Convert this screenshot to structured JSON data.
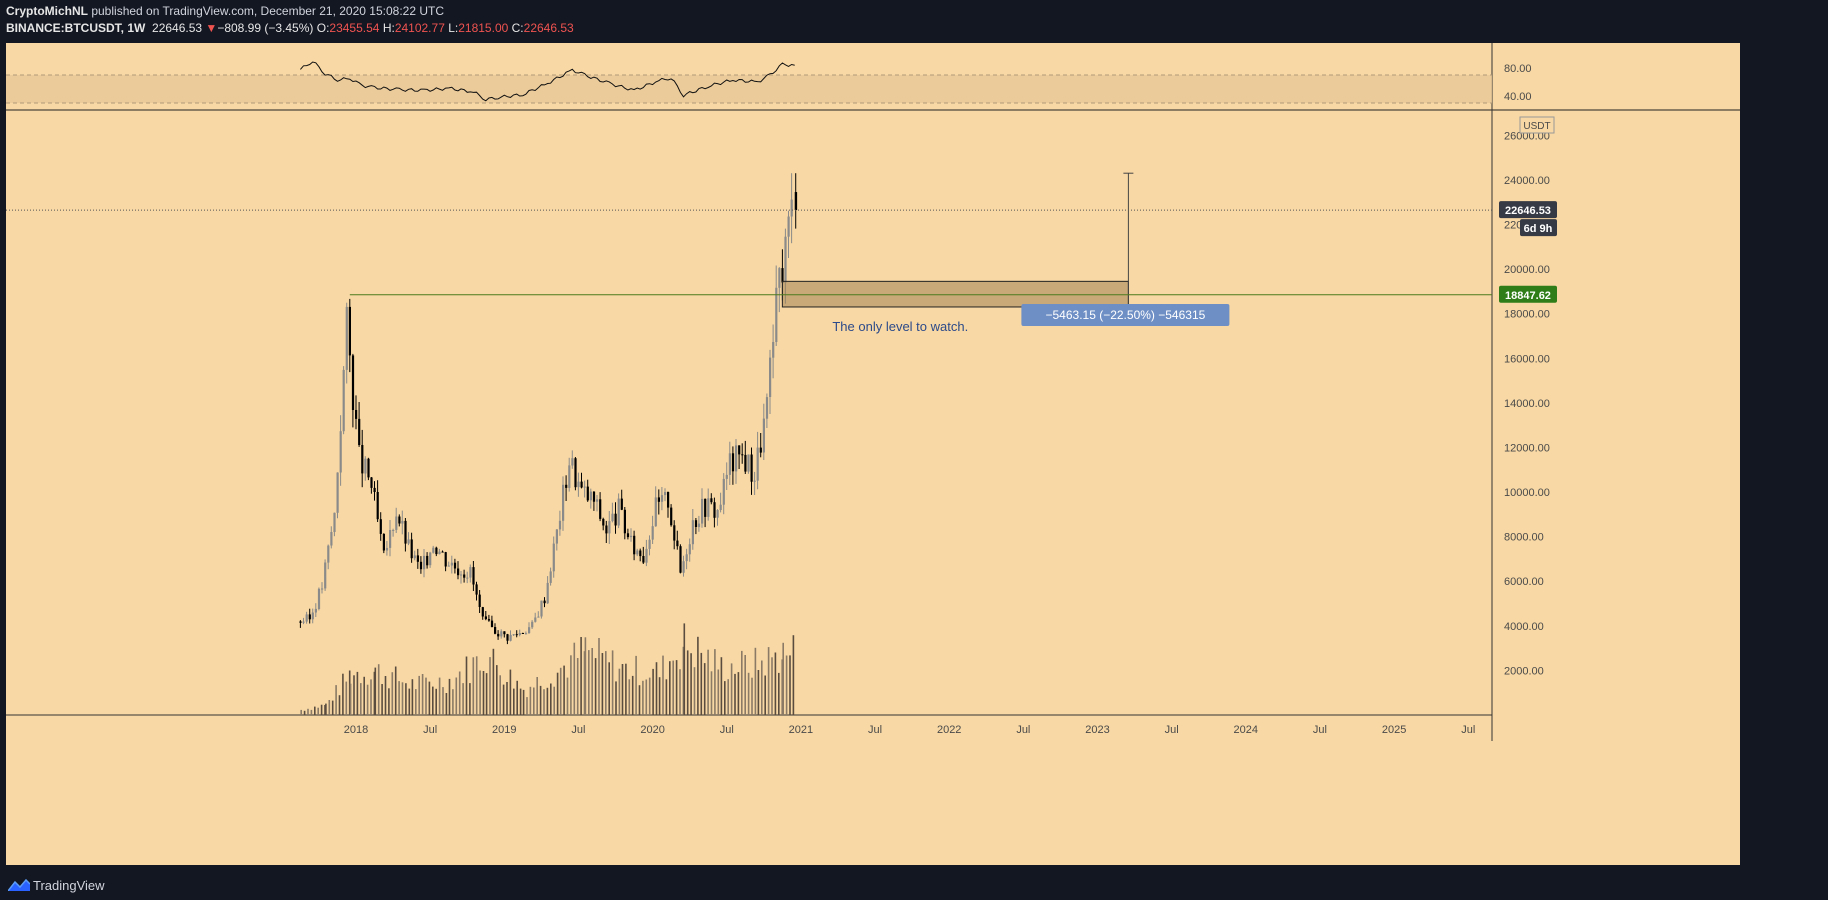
{
  "header": {
    "publisher": "CryptoMichNL",
    "published_on": " published on TradingView.com, December 21, 2020 15:08:22 UTC",
    "symbol": "BINANCE:BTCUSDT, 1W",
    "last": "22646.53",
    "change_arrow": "▼",
    "change": "−808.99 (−3.45%)",
    "o_label": "O:",
    "o_val": "23455.54",
    "h_label": "H:",
    "h_val": "24102.77",
    "l_label": "L:",
    "l_val": "21815.00",
    "c_label": "C:",
    "c_val": "22646.53"
  },
  "footer": {
    "brand": "TradingView"
  },
  "colors": {
    "background": "#131722",
    "chart_bg": "#f8d8a4",
    "up": "#8a8a8a",
    "down": "#000000",
    "level_line": "#4c7a1d",
    "level_badge": "#2e7d18",
    "measure_label": "#6e8fc5",
    "annotation_text": "#2c4a8a",
    "price_badge": "#363a45"
  },
  "chart_data": {
    "type": "candlestick",
    "timeframe": "1W",
    "currency": "USDT",
    "ylim": [
      0,
      27000
    ],
    "yticks": [
      2000,
      4000,
      6000,
      8000,
      10000,
      12000,
      14000,
      16000,
      18000,
      20000,
      22000,
      24000,
      26000
    ],
    "ytick_labels": [
      "2000.00",
      "4000.00",
      "6000.00",
      "8000.00",
      "10000.00",
      "12000.00",
      "14000.00",
      "16000.00",
      "18000.00",
      "20000.00",
      "22000.00",
      "24000.00",
      "26000.00"
    ],
    "xticks": [
      "2018",
      "Jul",
      "2019",
      "Jul",
      "2020",
      "Jul",
      "2021",
      "Jul",
      "2022",
      "Jul",
      "2023",
      "Jul",
      "2024",
      "Jul",
      "2025",
      "Jul"
    ],
    "current_price": {
      "value": 22646.53,
      "label": "22646.53",
      "countdown": "6d 9h"
    },
    "level": {
      "value": 18847.62,
      "label": "18847.62",
      "start": "2017-12"
    },
    "annotation": "The only level to watch.",
    "measure": {
      "label": "−5463.15 (−22.50%) −546315",
      "zone_top": 19450,
      "zone_bottom": 18300,
      "from": "2020-11",
      "to": "2023-03",
      "vline_top": 24300
    },
    "price_points": [
      [
        "2017-08",
        4200
      ],
      [
        "2017-09",
        4300
      ],
      [
        "2017-10",
        5800
      ],
      [
        "2017-11",
        9000
      ],
      [
        "2017-12",
        17500
      ],
      [
        "2018-01",
        11500
      ],
      [
        "2018-02",
        10300
      ],
      [
        "2018-03",
        7000
      ],
      [
        "2018-04",
        9200
      ],
      [
        "2018-05",
        7500
      ],
      [
        "2018-06",
        6400
      ],
      [
        "2018-07",
        7800
      ],
      [
        "2018-08",
        7000
      ],
      [
        "2018-09",
        6600
      ],
      [
        "2018-10",
        6400
      ],
      [
        "2018-11",
        4200
      ],
      [
        "2018-12",
        3800
      ],
      [
        "2019-01",
        3500
      ],
      [
        "2019-02",
        3700
      ],
      [
        "2019-03",
        4000
      ],
      [
        "2019-04",
        5300
      ],
      [
        "2019-05",
        8200
      ],
      [
        "2019-06",
        11500
      ],
      [
        "2019-07",
        10000
      ],
      [
        "2019-08",
        9600
      ],
      [
        "2019-09",
        8300
      ],
      [
        "2019-10",
        9200
      ],
      [
        "2019-11",
        7600
      ],
      [
        "2019-12",
        7200
      ],
      [
        "2020-01",
        9300
      ],
      [
        "2020-02",
        9700
      ],
      [
        "2020-03",
        6400
      ],
      [
        "2020-04",
        8700
      ],
      [
        "2020-05",
        9450
      ],
      [
        "2020-06",
        9150
      ],
      [
        "2020-07",
        11300
      ],
      [
        "2020-08",
        11650
      ],
      [
        "2020-09",
        10800
      ],
      [
        "2020-10",
        13800
      ],
      [
        "2020-11",
        19600
      ],
      [
        "2020-12",
        22646.53
      ]
    ],
    "volume_points": [
      [
        "2017-08",
        300
      ],
      [
        "2017-10",
        600
      ],
      [
        "2017-12",
        2400
      ],
      [
        "2018-02",
        2600
      ],
      [
        "2018-05",
        1800
      ],
      [
        "2018-08",
        2000
      ],
      [
        "2018-11",
        3500
      ],
      [
        "2019-02",
        1500
      ],
      [
        "2019-05",
        2700
      ],
      [
        "2019-07",
        3800
      ],
      [
        "2019-10",
        2700
      ],
      [
        "2020-01",
        2500
      ],
      [
        "2020-03",
        4200
      ],
      [
        "2020-06",
        2800
      ],
      [
        "2020-09",
        3000
      ],
      [
        "2020-11",
        3600
      ],
      [
        "2020-12",
        3700
      ]
    ],
    "rsi": {
      "yticks": [
        40,
        80
      ],
      "ytick_labels": [
        "40.00",
        "80.00"
      ],
      "band": [
        30,
        70
      ],
      "points": [
        [
          "2017-08",
          78
        ],
        [
          "2017-09",
          90
        ],
        [
          "2017-10",
          72
        ],
        [
          "2017-11",
          63
        ],
        [
          "2017-12",
          65
        ],
        [
          "2018-01",
          55
        ],
        [
          "2018-02",
          52
        ],
        [
          "2018-04",
          49
        ],
        [
          "2018-06",
          48
        ],
        [
          "2018-08",
          51
        ],
        [
          "2018-10",
          46
        ],
        [
          "2018-11",
          35
        ],
        [
          "2018-12",
          38
        ],
        [
          "2019-02",
          42
        ],
        [
          "2019-04",
          58
        ],
        [
          "2019-06",
          77
        ],
        [
          "2019-07",
          70
        ],
        [
          "2019-09",
          58
        ],
        [
          "2019-11",
          48
        ],
        [
          "2020-01",
          62
        ],
        [
          "2020-02",
          66
        ],
        [
          "2020-03",
          41
        ],
        [
          "2020-05",
          54
        ],
        [
          "2020-07",
          63
        ],
        [
          "2020-09",
          60
        ],
        [
          "2020-10",
          70
        ],
        [
          "2020-11",
          85
        ],
        [
          "2020-12",
          84
        ]
      ]
    }
  }
}
